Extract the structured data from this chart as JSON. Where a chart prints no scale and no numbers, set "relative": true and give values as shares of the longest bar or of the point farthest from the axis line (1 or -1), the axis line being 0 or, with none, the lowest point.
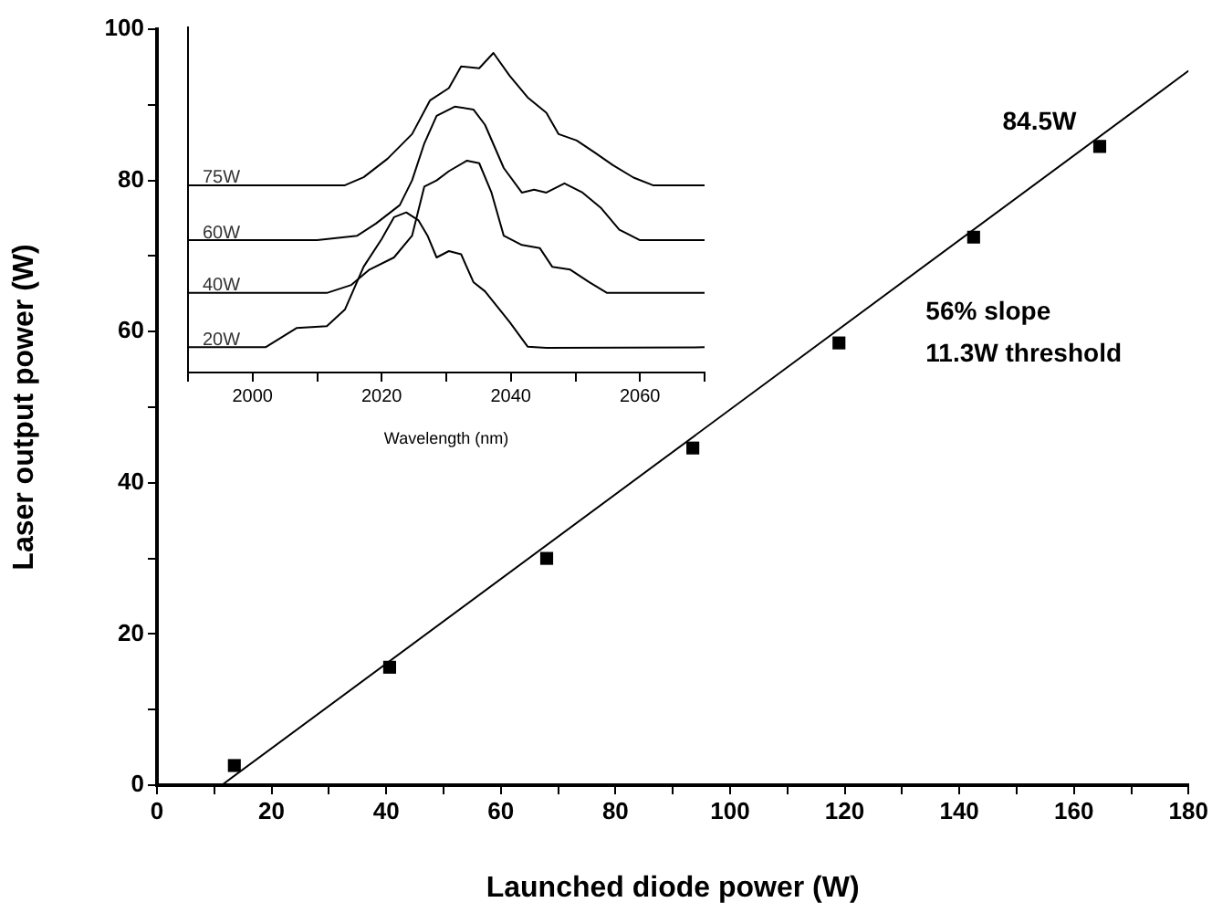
{
  "chart_data": [
    {
      "type": "scatter",
      "xlabel": "Launched diode power (W)",
      "ylabel": "Laser output power (W)",
      "xlim": [
        0,
        180
      ],
      "ylim": [
        0,
        100
      ],
      "xticks": [
        0,
        {
          "value": 10,
          "label": null
        },
        20,
        {
          "value": 30,
          "label": null
        },
        40,
        {
          "value": 50,
          "label": null
        },
        60,
        {
          "value": 70,
          "label": null
        },
        80,
        {
          "value": 90,
          "label": null
        },
        100,
        {
          "value": 110,
          "label": null
        },
        120,
        {
          "value": 130,
          "label": null
        },
        140,
        {
          "value": 150,
          "label": null
        },
        160,
        {
          "value": 170,
          "label": null
        },
        180
      ],
      "yticks": [
        0,
        {
          "value": 10,
          "label": null
        },
        20,
        {
          "value": 30,
          "label": null
        },
        40,
        {
          "value": 50,
          "label": null
        },
        60,
        {
          "value": 70,
          "label": null
        },
        80,
        {
          "value": 90,
          "label": null
        },
        100
      ],
      "marker": "square",
      "series": [
        {
          "type": "scatter",
          "color": "#000000",
          "x": [
            13.5,
            40.6,
            68,
            93.5,
            119,
            142.5,
            164.5
          ],
          "values": [
            2.6,
            15.6,
            30,
            44.6,
            58.5,
            72.5,
            84.5
          ]
        },
        {
          "type": "line",
          "color": "#000000",
          "marker": "none",
          "x": [
            11.3,
            180
          ],
          "values": [
            0,
            94.5
          ]
        }
      ],
      "annotations": [
        {
          "text": "84.5W",
          "x": 164.5,
          "y": 84.5
        },
        "56% slope",
        "11.3W threshold"
      ]
    },
    {
      "type": "line",
      "relative": true,
      "xlabel": "Wavelength (nm)",
      "xlim": [
        1990,
        2070
      ],
      "xticks": [
        {
          "value": 1990,
          "label": null
        },
        2000,
        {
          "value": 2010,
          "label": null
        },
        2020,
        {
          "value": 2030,
          "label": null
        },
        2040,
        {
          "value": 2050,
          "label": null
        },
        2060,
        {
          "value": 2070,
          "label": null
        }
      ],
      "tick_labels": "x",
      "series": [
        {
          "name": "20W",
          "color": "#000000",
          "x": [
            1990,
            2002,
            2006.8,
            2011.5,
            2014.3,
            2017.2,
            2020,
            2021.9,
            2023.8,
            2025.7,
            2027.1,
            2028.5,
            2030.4,
            2032.3,
            2034.2,
            2036,
            2039.8,
            2042.6,
            2045.5,
            2070
          ],
          "values": [
            0.079,
            0.079,
            0.139,
            0.145,
            0.197,
            0.331,
            0.418,
            0.486,
            0.501,
            0.476,
            0.428,
            0.36,
            0.38,
            0.37,
            0.283,
            0.254,
            0.158,
            0.081,
            0.077,
            0.079
          ]
        },
        {
          "name": "40W",
          "color": "#000000",
          "x": [
            1990,
            2011.5,
            2015.3,
            2018.1,
            2021.9,
            2024.7,
            2026.6,
            2028.5,
            2030.4,
            2033.2,
            2035.1,
            2037,
            2038.9,
            2041.7,
            2044.5,
            2046.4,
            2049.2,
            2052.1,
            2054.9,
            2070
          ],
          "values": [
            0.249,
            0.249,
            0.274,
            0.322,
            0.36,
            0.428,
            0.582,
            0.601,
            0.63,
            0.663,
            0.655,
            0.563,
            0.428,
            0.399,
            0.389,
            0.331,
            0.322,
            0.283,
            0.249,
            0.249
          ]
        },
        {
          "name": "60W",
          "color": "#000000",
          "x": [
            1990,
            2010,
            2016.2,
            2019.1,
            2022.8,
            2024.7,
            2026.6,
            2028.5,
            2031.3,
            2034.2,
            2036,
            2038.9,
            2041.7,
            2043.6,
            2045.5,
            2048.3,
            2051.1,
            2054,
            2056.8,
            2060,
            2070
          ],
          "values": [
            0.414,
            0.414,
            0.428,
            0.466,
            0.524,
            0.601,
            0.717,
            0.803,
            0.832,
            0.823,
            0.775,
            0.64,
            0.563,
            0.572,
            0.563,
            0.592,
            0.563,
            0.514,
            0.447,
            0.414,
            0.414
          ]
        },
        {
          "name": "75W",
          "color": "#000000",
          "x": [
            1990,
            2014.3,
            2017.2,
            2020.9,
            2024.7,
            2027.5,
            2030.4,
            2032.3,
            2035.1,
            2037.3,
            2039.8,
            2042.6,
            2045.5,
            2047.4,
            2050.2,
            2053,
            2055.8,
            2059,
            2062,
            2070
          ],
          "values": [
            0.586,
            0.586,
            0.611,
            0.669,
            0.746,
            0.852,
            0.89,
            0.958,
            0.952,
            1,
            0.929,
            0.861,
            0.813,
            0.746,
            0.726,
            0.688,
            0.649,
            0.61,
            0.586,
            0.586
          ]
        }
      ]
    }
  ]
}
